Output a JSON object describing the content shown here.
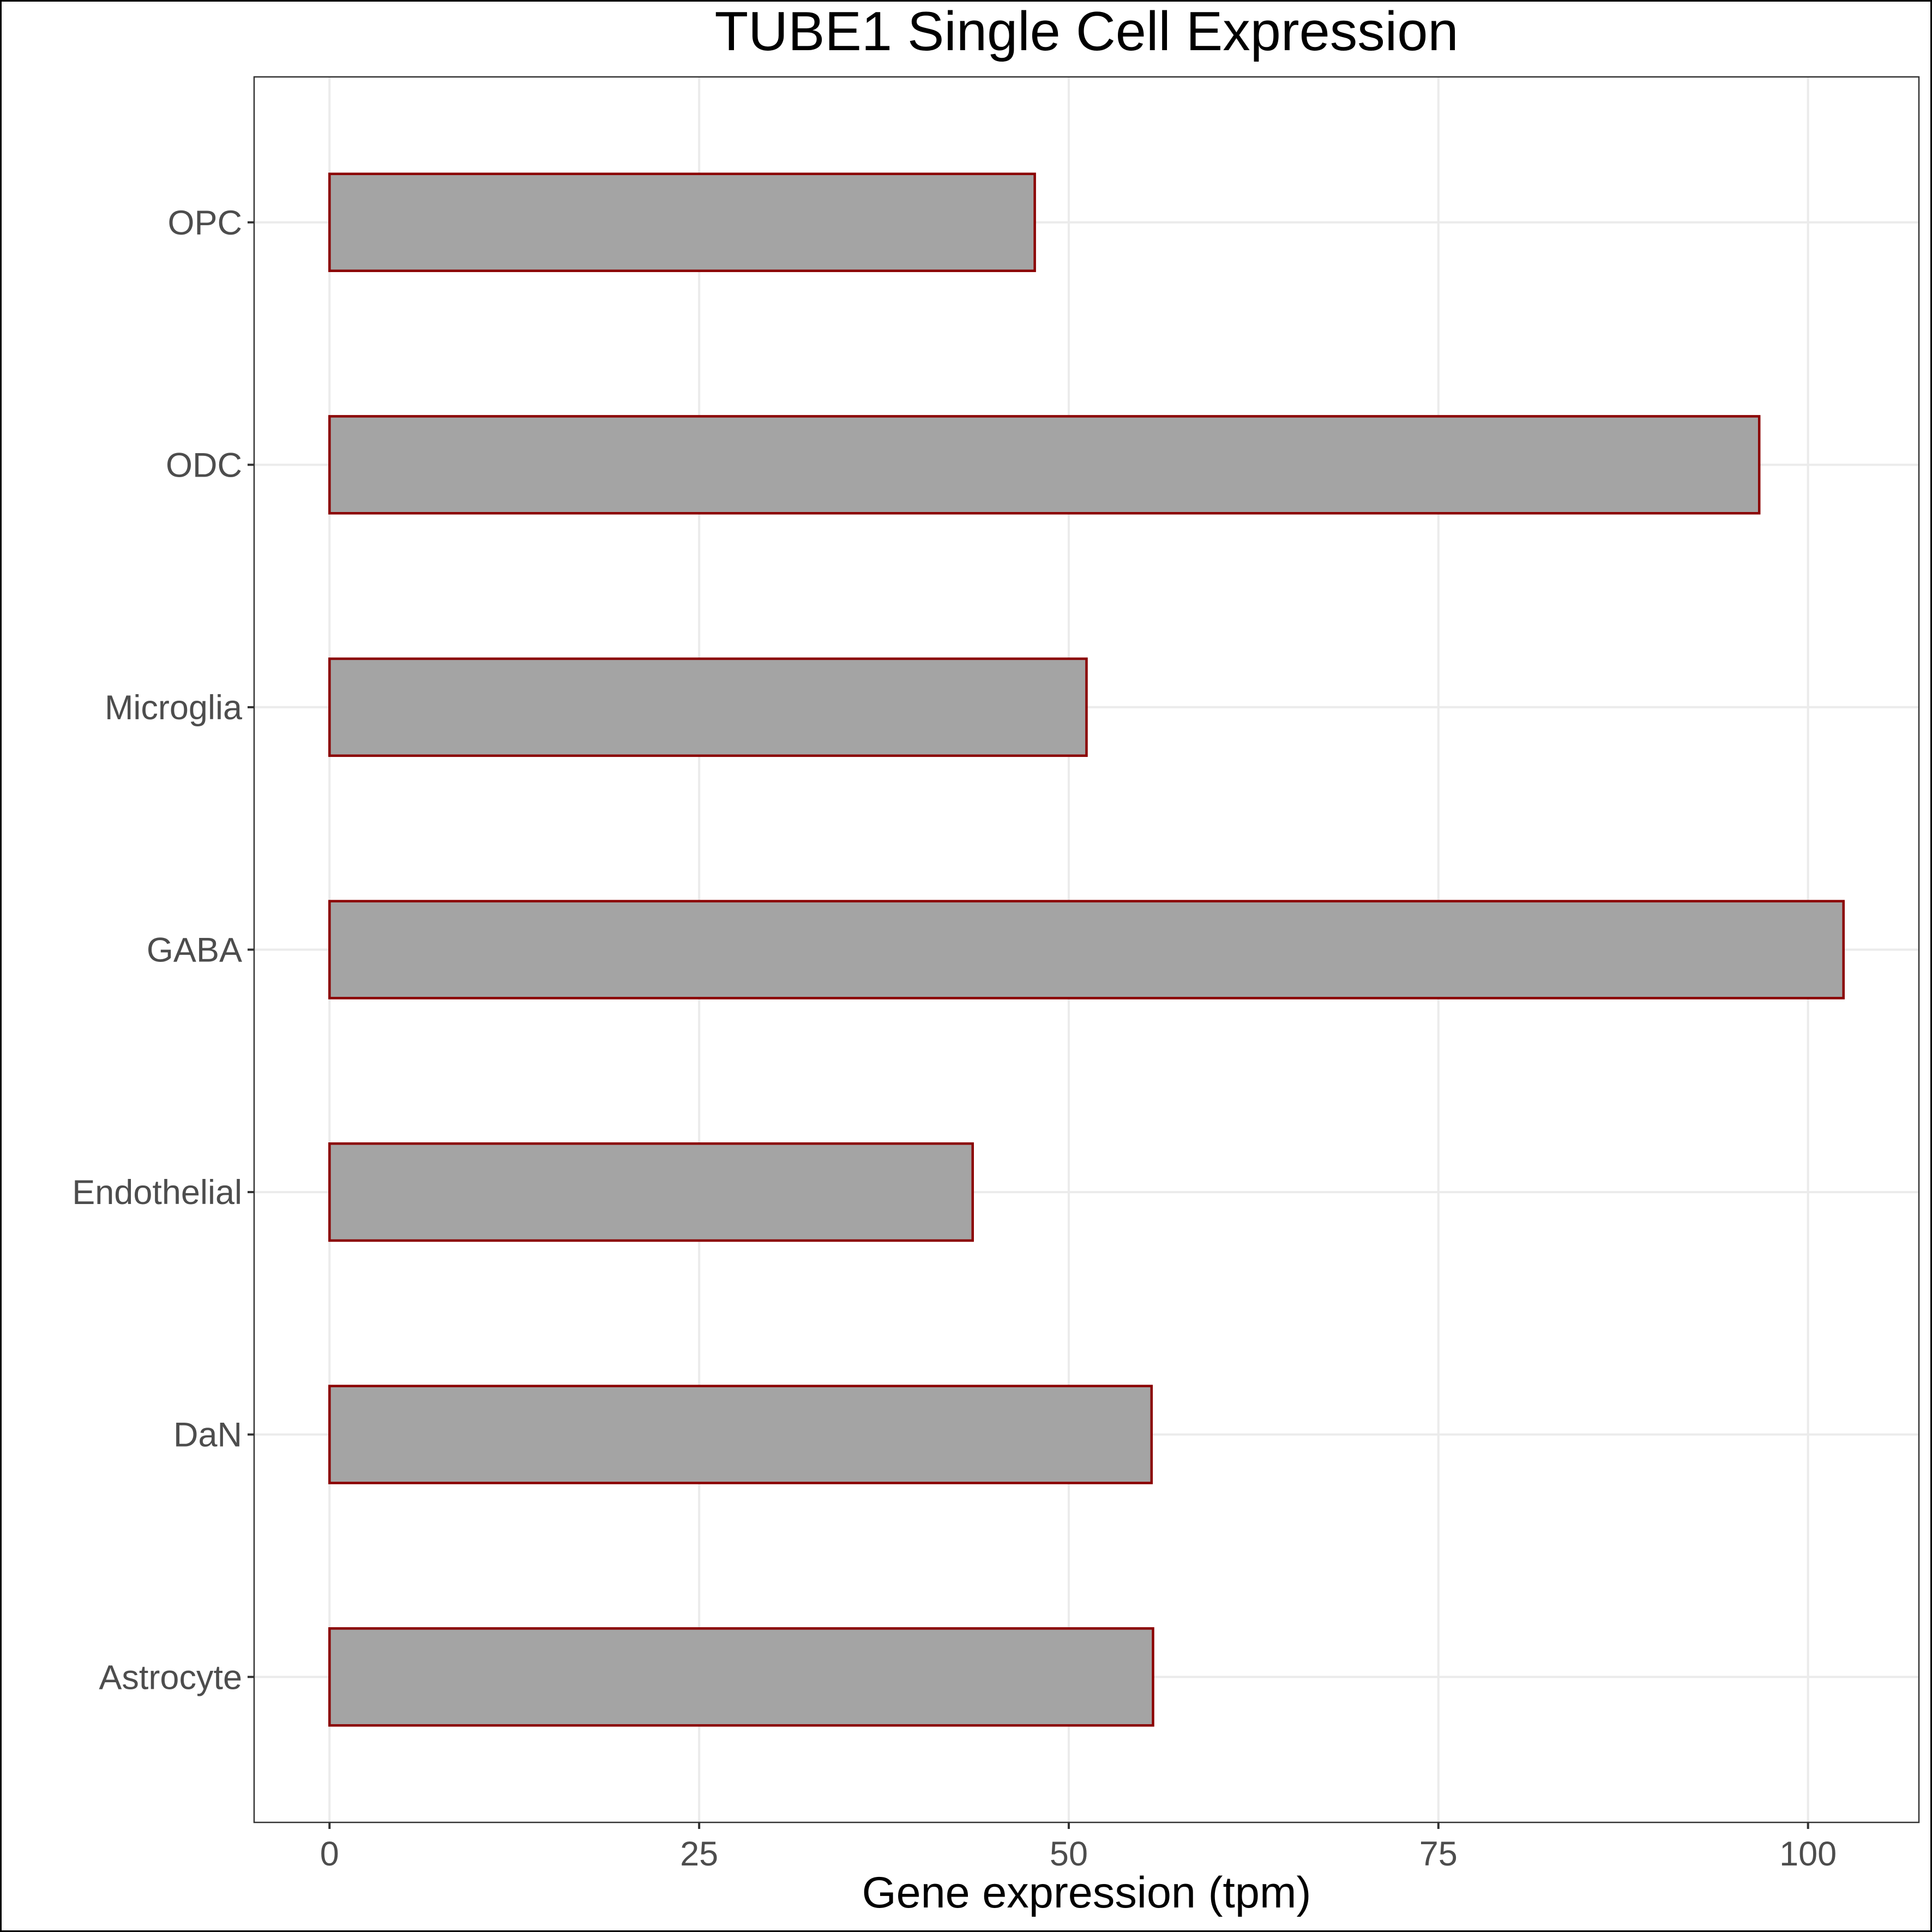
{
  "chart_data": {
    "type": "bar",
    "orientation": "horizontal",
    "title": "TUBE1 Single Cell Expression",
    "xlabel": "Gene expression (tpm)",
    "ylabel": "",
    "categories": [
      "Astrocyte",
      "DaN",
      "Endothelial",
      "GABA",
      "Microglia",
      "ODC",
      "OPC"
    ],
    "values": [
      55.7,
      55.6,
      43.5,
      102.4,
      51.2,
      96.7,
      47.7
    ],
    "xlim": [
      -5.1,
      107.5
    ],
    "xticks": [
      0,
      25,
      50,
      75,
      100
    ],
    "xtick_labels": [
      "0",
      "25",
      "50",
      "75",
      "100"
    ],
    "grid": true,
    "legend": "none",
    "colors": {
      "bar_fill": "#a4a4a4",
      "bar_outline": "#8b0000",
      "grid": "#ebebeb",
      "tick_text": "#4d4d4d",
      "title_text": "#000000"
    }
  }
}
